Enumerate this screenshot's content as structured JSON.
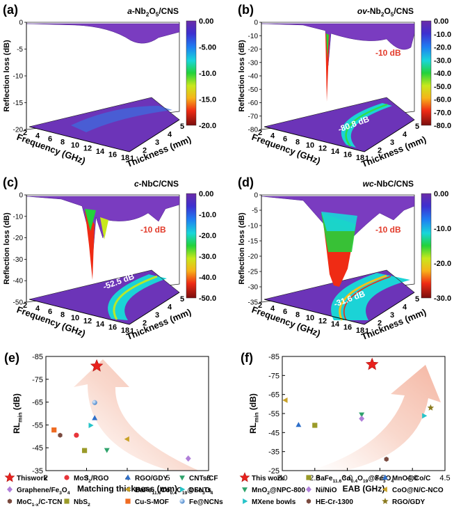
{
  "panels3d": [
    {
      "letter": "(a)",
      "title": "a-Nb2O5/CNS",
      "ylabel": "Reflection loss (dB)",
      "xlabel": "Frequency (GHz)",
      "tlabel": "Thickness (mm)",
      "zticks": [
        "0",
        "-5",
        "-10",
        "-15",
        "-20"
      ],
      "xticks": [
        "2",
        "4",
        "6",
        "8",
        "10",
        "12",
        "14",
        "16",
        "18"
      ],
      "tticks": [
        "1",
        "2",
        "3",
        "4",
        "5"
      ],
      "cbar": [
        "0.00",
        "-5.00",
        "-10.0",
        "-15.0",
        "-20.0"
      ],
      "rl_min": "",
      "ten_db": ""
    },
    {
      "letter": "(b)",
      "title": "ov-Nb2O5/CNS",
      "ylabel": "Reflection loss (dB)",
      "xlabel": "Frequency (GHz)",
      "tlabel": "Thickness (mm)",
      "zticks": [
        "0",
        "-10",
        "-20",
        "-30",
        "-40",
        "-50",
        "-60",
        "-70",
        "-80"
      ],
      "xticks": [
        "2",
        "4",
        "6",
        "8",
        "10",
        "12",
        "14",
        "16",
        "18"
      ],
      "tticks": [
        "1",
        "2",
        "3",
        "4",
        "5"
      ],
      "cbar": [
        "0.00",
        "-10.0",
        "-20.0",
        "-30.0",
        "-40.0",
        "-50.0",
        "-60.0",
        "-70.0",
        "-80.0"
      ],
      "rl_min": "-80.8 dB",
      "ten_db": "-10 dB"
    },
    {
      "letter": "(c)",
      "title": "c-NbC/CNS",
      "ylabel": "Reflection loss (dB)",
      "xlabel": "Frequency (GHz)",
      "tlabel": "Thickness (mm)",
      "zticks": [
        "0",
        "-10",
        "-20",
        "-30",
        "-40",
        "-50"
      ],
      "xticks": [
        "2",
        "4",
        "6",
        "8",
        "10",
        "12",
        "14",
        "16",
        "18"
      ],
      "tticks": [
        "1",
        "2",
        "3",
        "4",
        "5"
      ],
      "cbar": [
        "0.00",
        "-10.0",
        "-20.0",
        "-30.0",
        "-40.0",
        "-50.0"
      ],
      "rl_min": "-52.5 dB",
      "ten_db": "-10 dB"
    },
    {
      "letter": "(d)",
      "title": "wc-NbC/CNS",
      "ylabel": "Reflection loss (dB)",
      "xlabel": "Frequency (GHz)",
      "tlabel": "Thickness (mm)",
      "zticks": [
        "0",
        "-5",
        "-10",
        "-15",
        "-20",
        "-25",
        "-30",
        "-35"
      ],
      "xticks": [
        "2",
        "4",
        "6",
        "8",
        "10",
        "12",
        "14",
        "16",
        "18"
      ],
      "tticks": [
        "1",
        "2",
        "3",
        "4",
        "5"
      ],
      "cbar": [
        "0.00",
        "-10.0",
        "-20.0",
        "-30.0"
      ],
      "rl_min": "-31.6 dB",
      "ten_db": "-10 dB"
    }
  ],
  "chart_data": [
    {
      "type": "scatter",
      "panel": "(e)",
      "xlabel": "Matching thickness (mm)",
      "ylabel": "RLmin (dB)",
      "xlim": [
        2,
        6
      ],
      "ylim": [
        -35,
        -85
      ],
      "xticks": [
        2,
        3,
        4,
        5,
        6
      ],
      "yticks": [
        -85,
        -75,
        -65,
        -55,
        -45,
        -35
      ],
      "series": [
        {
          "name": "Thiswork",
          "marker": "star",
          "color": "#e8211d",
          "x": 3.25,
          "y": -80.8
        },
        {
          "name": "MoS2/RGO",
          "marker": "circle",
          "color": "#e8353a",
          "x": 2.75,
          "y": -50.5
        },
        {
          "name": "RGO/GDY",
          "marker": "triangle-up",
          "color": "#2e6fc9",
          "x": 3.2,
          "y": -58
        },
        {
          "name": "CNTs/CF",
          "marker": "triangle-down",
          "color": "#2fa36b",
          "x": 3.5,
          "y": -44
        },
        {
          "name": "Graphene/Fe3O4",
          "marker": "diamond",
          "color": "#b07fd9",
          "x": 5.5,
          "y": -40.3
        },
        {
          "name": "BaFe11.6Co0.4O19@Fe3O4",
          "marker": "triangle-left",
          "color": "#c9a227",
          "x": 4.0,
          "y": -48.8
        },
        {
          "name": "DSNTs",
          "marker": "triangle-right",
          "color": "#26c4c9",
          "x": 3.1,
          "y": -54.8
        },
        {
          "name": "MoC1-x/C-TCN",
          "marker": "hexagon",
          "color": "#7a4a3f",
          "x": 2.35,
          "y": -50.5
        },
        {
          "name": "NbS2",
          "marker": "square",
          "color": "#9a9a28",
          "x": 2.95,
          "y": -43.8
        },
        {
          "name": "Cu-S-MOF",
          "marker": "square",
          "color": "#ef6b22",
          "x": 2.2,
          "y": -52.8
        },
        {
          "name": "Fe@NCNs",
          "marker": "sphere",
          "color": "#6aa6e0",
          "x": 3.2,
          "y": -64.8
        }
      ]
    },
    {
      "type": "scatter",
      "panel": "(f)",
      "xlabel": "EAB (GHz)",
      "ylabel": "RLmin (dB)",
      "xlim": [
        2.0,
        4.5
      ],
      "ylim": [
        -25,
        -85
      ],
      "xticks": [
        2.0,
        2.5,
        3.0,
        3.5,
        4.0,
        4.5
      ],
      "yticks": [
        -85,
        -75,
        -65,
        -55,
        -45,
        -35,
        -25
      ],
      "series": [
        {
          "name": "This work",
          "marker": "star",
          "color": "#e8211d",
          "x": 3.38,
          "y": -80.8
        },
        {
          "name": "BaFe11.6Co0.4O19@Fe3O4",
          "marker": "square",
          "color": "#9a9a28",
          "x": 2.5,
          "y": -48.8
        },
        {
          "name": "MnO@Co/C",
          "marker": "triangle-up",
          "color": "#2e6fc9",
          "x": 2.25,
          "y": -49
        },
        {
          "name": "MnO2@NPC-800",
          "marker": "triangle-down",
          "color": "#2fa36b",
          "x": 3.22,
          "y": -54.5
        },
        {
          "name": "Ni/NiO",
          "marker": "diamond",
          "color": "#b07fd9",
          "x": 3.22,
          "y": -52.3
        },
        {
          "name": "CoO@N/C-NCO",
          "marker": "triangle-left",
          "color": "#c9a227",
          "x": 2.05,
          "y": -62
        },
        {
          "name": "MXene bowls",
          "marker": "triangle-right",
          "color": "#26c4c9",
          "x": 4.18,
          "y": -53.8
        },
        {
          "name": "HE-Cr-1300",
          "marker": "hexagon",
          "color": "#7a4a3f",
          "x": 3.6,
          "y": -31
        },
        {
          "name": "RGO/GDY",
          "marker": "star",
          "color": "#8a7a1f",
          "x": 4.28,
          "y": -58
        }
      ]
    }
  ]
}
